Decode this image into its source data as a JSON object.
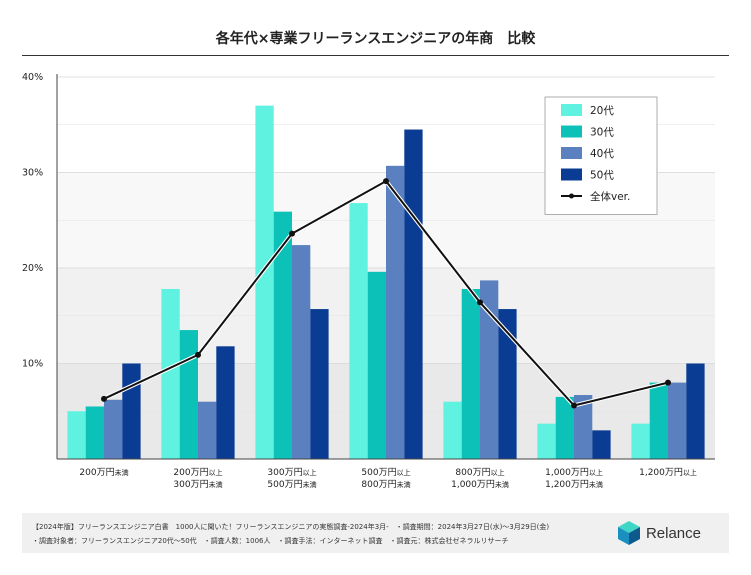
{
  "chart_data": {
    "type": "bar",
    "title": "各年代×専業フリーランスエンジニアの年商　比較",
    "categories": [
      [
        "200万円",
        "未満"
      ],
      [
        "200万円",
        "以上"
      ],
      [
        "300万円",
        "以上"
      ],
      [
        "500万円",
        "以上"
      ],
      [
        "800万円",
        "以上"
      ],
      [
        "1,000万円",
        "以上"
      ],
      [
        "1,200万円",
        "以上"
      ]
    ],
    "category_lines": [
      [
        [
          "200万円",
          "未満"
        ]
      ],
      [
        [
          "200万円",
          "以上"
        ],
        [
          "300万円",
          "未満"
        ]
      ],
      [
        [
          "300万円",
          "以上"
        ],
        [
          "500万円",
          "未満"
        ]
      ],
      [
        [
          "500万円",
          "以上"
        ],
        [
          "800万円",
          "未満"
        ]
      ],
      [
        [
          "800万円",
          "以上"
        ],
        [
          "1,000万円",
          "未満"
        ]
      ],
      [
        [
          "1,000万円",
          "以上"
        ],
        [
          "1,200万円",
          "未満"
        ]
      ],
      [
        [
          "1,200万円",
          "以上"
        ]
      ]
    ],
    "series": [
      {
        "name": "20代",
        "color": "#5ff2e0",
        "values": [
          5.0,
          17.8,
          37.0,
          26.8,
          6.0,
          3.7,
          3.7
        ]
      },
      {
        "name": "30代",
        "color": "#0cc2b8",
        "values": [
          5.5,
          13.5,
          25.9,
          19.6,
          17.8,
          6.5,
          8.0
        ]
      },
      {
        "name": "40代",
        "color": "#5b80bf",
        "values": [
          6.2,
          6.0,
          22.4,
          30.7,
          18.7,
          6.7,
          8.0
        ]
      },
      {
        "name": "50代",
        "color": "#0a3c94",
        "values": [
          10.0,
          11.8,
          15.7,
          34.5,
          15.7,
          3.0,
          10.0
        ]
      }
    ],
    "overall": {
      "name": "全体ver.",
      "color": "#111111",
      "values": [
        6.3,
        10.9,
        23.6,
        29.1,
        16.4,
        5.6,
        8.0
      ]
    },
    "ylim": [
      0,
      40
    ],
    "yticks": [
      10,
      20,
      30,
      40
    ],
    "ytick_labels": [
      "10%",
      "20%",
      "30%",
      "40%"
    ],
    "xlabel": "",
    "ylabel": "",
    "legend_position": "top-right"
  },
  "footer": {
    "line1": "【2024年版】フリーランスエンジニア白書　1000人に聞いた！フリーランスエンジニアの実態調査-2024年3月-　・調査期間：2024年3月27日(水)〜3月29日(金)",
    "line2": "・調査対象者：フリーランスエンジニア20代〜50代　・調査人数：1006人　・調査手法：インターネット調査　・調査元：株式会社ゼネラルリサーチ",
    "brand_name": "Relance",
    "brand_icon": "relance-logo-icon",
    "brand_colors": [
      "#3fd6c6",
      "#1a8fc0",
      "#0f5a8c"
    ]
  }
}
